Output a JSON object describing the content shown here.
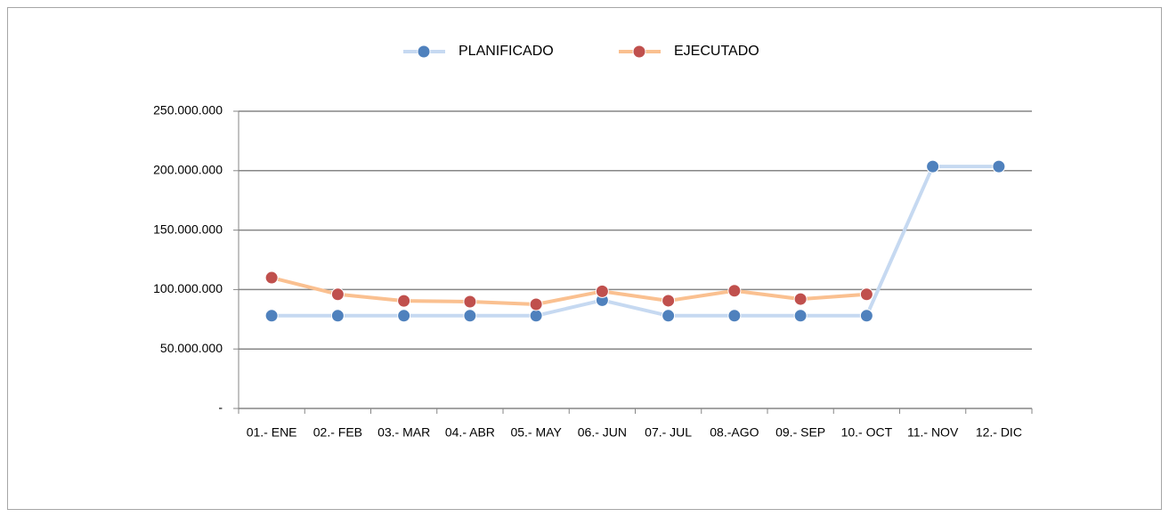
{
  "chart_data": {
    "type": "line",
    "categories": [
      "01.- ENE",
      "02.- FEB",
      "03.- MAR",
      "04.- ABR",
      "05.- MAY",
      "06.- JUN",
      "07.- JUL",
      "08.-AGO",
      "09.- SEP",
      "10.- OCT",
      "11.- NOV",
      "12.- DIC"
    ],
    "series": [
      {
        "name": "PLANIFICADO",
        "color": "#4f81bd",
        "line_color": "#c6d9f1",
        "values": [
          78000000,
          78000000,
          78000000,
          78000000,
          78000000,
          91000000,
          78000000,
          78000000,
          78000000,
          78000000,
          203500000,
          203500000
        ]
      },
      {
        "name": "EJECUTADO",
        "color": "#c0504d",
        "line_color": "#fac090",
        "values": [
          110000000,
          96000000,
          90500000,
          89800000,
          87600000,
          98500000,
          90600000,
          99000000,
          92000000,
          96000000,
          null,
          null
        ]
      }
    ],
    "ylim": [
      0,
      250000000
    ],
    "yticks": [
      {
        "value": 0,
        "label": "-"
      },
      {
        "value": 50000000,
        "label": "50.000.000"
      },
      {
        "value": 100000000,
        "label": "100.000.000"
      },
      {
        "value": 150000000,
        "label": "150.000.000"
      },
      {
        "value": 200000000,
        "label": "200.000.000"
      },
      {
        "value": 250000000,
        "label": "250.000.000"
      }
    ],
    "grid": true
  }
}
